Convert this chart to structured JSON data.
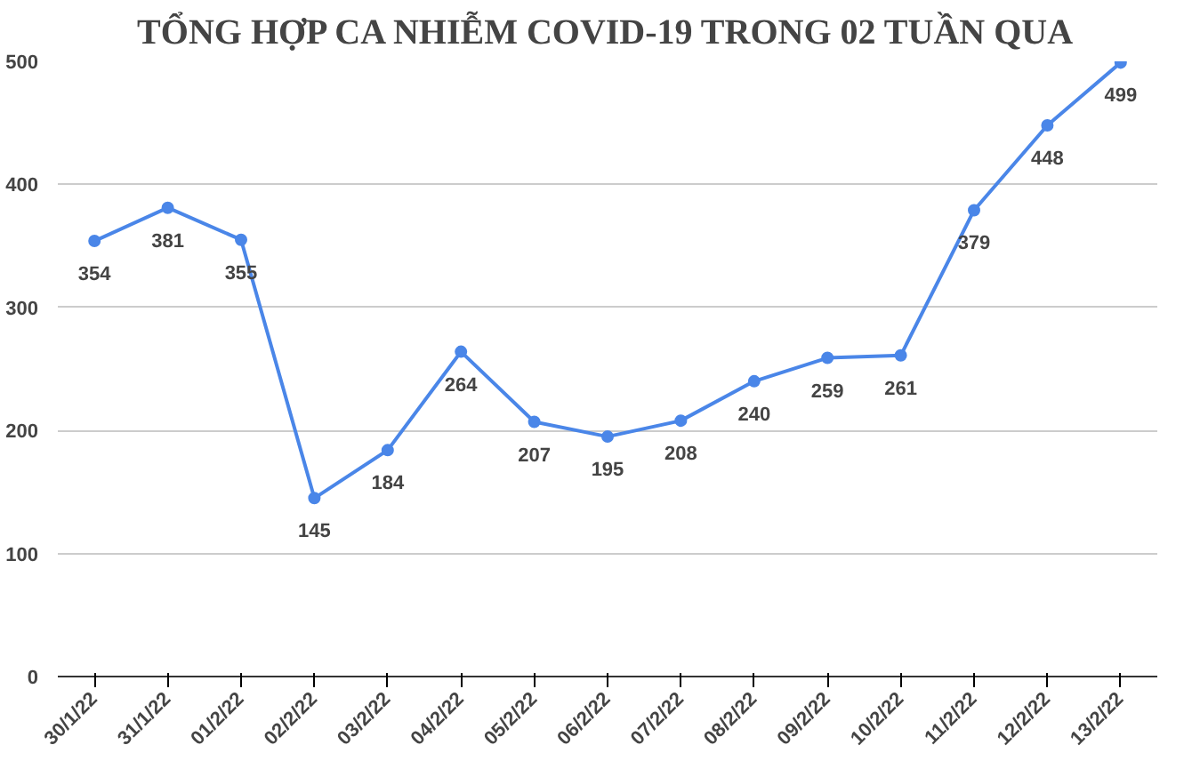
{
  "chart_data": {
    "type": "line",
    "title": "TỔNG HỢP CA NHIỄM COVID-19 TRONG 02 TUẦN QUA",
    "categories": [
      "30/1/22",
      "31/1/22",
      "01/2/22",
      "02/2/22",
      "03/2/22",
      "04/2/22",
      "05/2/22",
      "06/2/22",
      "07/2/22",
      "08/2/22",
      "09/2/22",
      "10/2/22",
      "11/2/22",
      "12/2/22",
      "13/2/22"
    ],
    "series": [
      {
        "color": "#4a86e8",
        "values": [
          354,
          381,
          355,
          145,
          184,
          264,
          207,
          195,
          208,
          240,
          259,
          261,
          379,
          448,
          499
        ]
      }
    ],
    "ylim": [
      0,
      500
    ],
    "yticks": [
      0,
      100,
      200,
      300,
      400,
      500
    ],
    "grid": "y",
    "marker": "circle",
    "line_style": "solid",
    "data_labels": true
  }
}
